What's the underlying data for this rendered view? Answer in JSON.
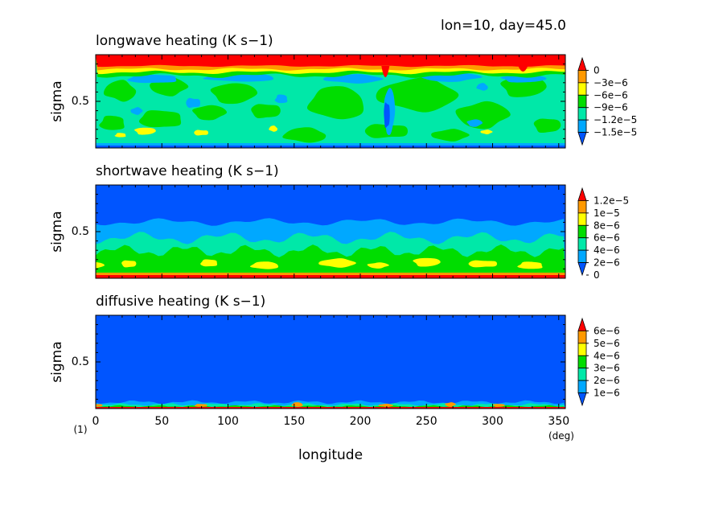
{
  "header": {
    "info": "lon=10, day=45.0"
  },
  "colors": {
    "red": "#ff0000",
    "orange": "#ff9900",
    "yellow": "#ffff00",
    "green": "#00dd00",
    "teal": "#00e8a8",
    "cyan": "#00a8ff",
    "blue": "#0055ff"
  },
  "chart_data": [
    {
      "type": "heatmap",
      "title": "longwave heating (K s−1)",
      "ylabel": "sigma",
      "xlim": [
        0,
        355
      ],
      "ylim": [
        0,
        1
      ],
      "y_ticks": [
        "0.5"
      ],
      "colorbar": {
        "labels": [
          "0",
          "−3e−6",
          "−6e−6",
          "−9e−6",
          "−1.2e−5",
          "−1.5e−5"
        ],
        "levels": [
          0,
          -3e-06,
          -6e-06,
          -9e-06,
          -1.2e-05,
          -1.5e-05
        ],
        "colors": [
          "#ff0000",
          "#ff9900",
          "#ffff00",
          "#00dd00",
          "#00e8a8",
          "#00a8ff",
          "#0055ff"
        ]
      }
    },
    {
      "type": "heatmap",
      "title": "shortwave heating (K s−1)",
      "ylabel": "sigma",
      "xlim": [
        0,
        355
      ],
      "ylim": [
        0,
        1
      ],
      "y_ticks": [
        "0.5"
      ],
      "colorbar": {
        "labels": [
          "1.2e−5",
          "1e−5",
          "8e−6",
          "6e−6",
          "4e−6",
          "2e−6",
          "0"
        ],
        "levels": [
          1.2e-05,
          1e-05,
          8e-06,
          6e-06,
          4e-06,
          2e-06,
          0
        ],
        "colors": [
          "#ff0000",
          "#ff9900",
          "#ffff00",
          "#00dd00",
          "#00e8a8",
          "#00a8ff",
          "#0055ff"
        ]
      }
    },
    {
      "type": "heatmap",
      "title": "diffusive heating (K s−1)",
      "ylabel": "sigma",
      "xlabel": "longitude",
      "xlim": [
        0,
        355
      ],
      "ylim": [
        0,
        1
      ],
      "y_ticks": [
        "0.5"
      ],
      "x_ticks": [
        "0",
        "50",
        "100",
        "150",
        "200",
        "250",
        "300",
        "350"
      ],
      "x_tick_values": [
        0,
        50,
        100,
        150,
        200,
        250,
        300,
        350
      ],
      "x_unit": "(deg)",
      "figure_label": "(1)",
      "colorbar": {
        "labels": [
          "6e−6",
          "5e−6",
          "4e−6",
          "3e−6",
          "2e−6",
          "1e−6"
        ],
        "levels": [
          6e-06,
          5e-06,
          4e-06,
          3e-06,
          2e-06,
          1e-06
        ],
        "colors": [
          "#ff0000",
          "#ff9900",
          "#ffff00",
          "#00dd00",
          "#00e8a8",
          "#00a8ff",
          "#0055ff"
        ]
      }
    }
  ]
}
